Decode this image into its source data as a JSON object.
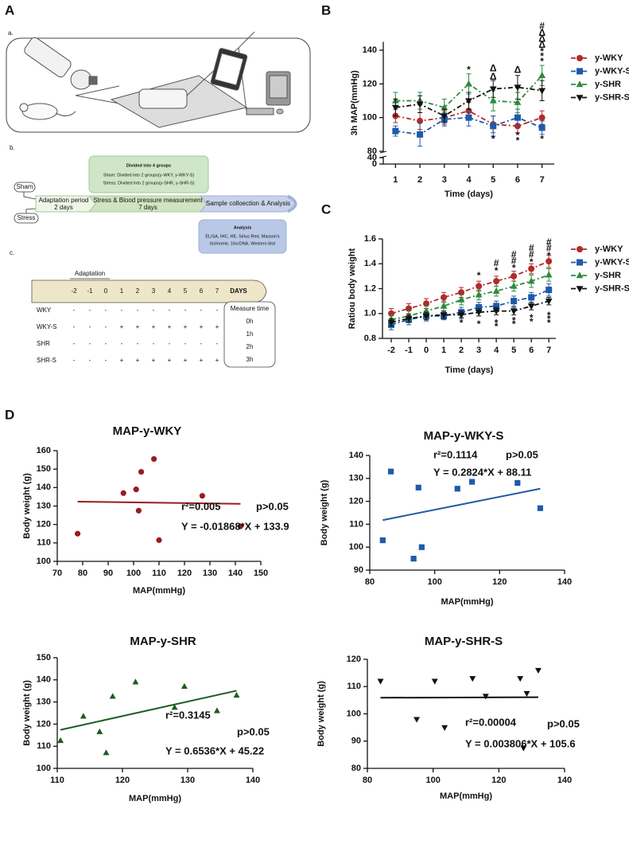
{
  "panel_labels": [
    "A",
    "B",
    "C",
    "D"
  ],
  "panel_a": {
    "sub_labels": [
      "a.",
      "b.",
      "c."
    ],
    "groups_box": {
      "title": "Divided into 4 groups",
      "lines": [
        "Sham: Divided into 2 groups(y-WKY, y-WKY-S)",
        "Stress: Divided into 2 groups(y-SHR, y-SHR-S)"
      ]
    },
    "conditions": [
      "Sham",
      "Stress"
    ],
    "phases": [
      {
        "name": "Adaptation period",
        "duration": "2 days"
      },
      {
        "name": "Stress & Blood pressure measurement",
        "duration": "7 days"
      },
      {
        "name": "Sample colloection & Analysis"
      }
    ],
    "analysis_box": {
      "title": "Analysis",
      "lines": [
        "ELISA, IHC, HE, Sirius Red, Masson's",
        "trichrome, 16srDNA, Western blot"
      ]
    },
    "timeline": {
      "label": "Adaptation",
      "days": [
        "-2",
        "-1",
        "0",
        "1",
        "2",
        "3",
        "4",
        "5",
        "6",
        "7"
      ],
      "unit": "DAYS"
    },
    "schedule": [
      {
        "group": "WKY",
        "marks": [
          "-",
          "-",
          "-",
          "-",
          "-",
          "-",
          "-",
          "-",
          "-",
          "-"
        ]
      },
      {
        "group": "WKY-S",
        "marks": [
          "-",
          "-",
          "-",
          "+",
          "+",
          "+",
          "+",
          "+",
          "+",
          "+"
        ]
      },
      {
        "group": "SHR",
        "marks": [
          "-",
          "-",
          "-",
          "-",
          "-",
          "-",
          "-",
          "-",
          "-",
          "-"
        ]
      },
      {
        "group": "SHR-S",
        "marks": [
          "-",
          "-",
          "-",
          "+",
          "+",
          "+",
          "+",
          "+",
          "+",
          "+"
        ]
      }
    ],
    "measure_time": {
      "title": "Measure time",
      "times": [
        "0h",
        "1h",
        "2h",
        "3h"
      ]
    }
  },
  "chart_data": [
    {
      "type": "line",
      "x_label": "Time (days)",
      "y_label": "3h MAP(mmHg)",
      "x": [
        1,
        2,
        3,
        4,
        5,
        6,
        7
      ],
      "xlim": [
        0.5,
        7.5
      ],
      "xticks": [
        1,
        2,
        3,
        4,
        5,
        6,
        7
      ],
      "ylim": [
        0,
        145
      ],
      "y_break": [
        40,
        80
      ],
      "yticks": [
        0,
        40,
        80,
        100,
        120,
        140
      ],
      "legend": "right",
      "series": [
        {
          "name": "y-WKY",
          "color": "#b22a2a",
          "marker": "circle",
          "values": [
            101,
            98,
            100,
            104,
            96,
            95,
            100
          ],
          "errors": [
            4,
            5,
            4,
            5,
            5,
            4,
            4
          ]
        },
        {
          "name": "y-WKY-S",
          "color": "#1f5aa8",
          "marker": "square",
          "values": [
            92,
            90,
            99,
            100,
            95,
            100,
            94
          ],
          "errors": [
            3,
            7,
            4,
            5,
            6,
            5,
            4
          ]
        },
        {
          "name": "y-SHR",
          "color": "#2e8b3c",
          "marker": "triangle",
          "values": [
            110,
            110,
            106,
            120,
            110,
            109,
            125
          ],
          "errors": [
            5,
            5,
            5,
            6,
            6,
            6,
            6
          ]
        },
        {
          "name": "y-SHR-S",
          "color": "#111111",
          "marker": "triangle-down",
          "values": [
            106,
            108,
            101,
            110,
            117,
            118,
            116
          ],
          "errors": [
            5,
            5,
            4,
            5,
            5,
            7,
            6
          ]
        }
      ],
      "annotations": [
        {
          "x": 4,
          "y": 128,
          "text": "*",
          "color": "#2e8b3c"
        },
        {
          "x": 5,
          "y": 129,
          "text": "Δ",
          "color": "#111111"
        },
        {
          "x": 5,
          "y": 124,
          "text": "Δ",
          "color": "#111111"
        },
        {
          "x": 6,
          "y": 128,
          "text": "Δ",
          "color": "#111111"
        },
        {
          "x": 7,
          "y": 154,
          "text": "#",
          "color": "#111111"
        },
        {
          "x": 7,
          "y": 150,
          "text": "Δ",
          "color": "#111111"
        },
        {
          "x": 7,
          "y": 146.5,
          "text": "Δ",
          "color": "#111111"
        },
        {
          "x": 7,
          "y": 143,
          "text": "Δ",
          "color": "#111111"
        },
        {
          "x": 7,
          "y": 139,
          "text": "*",
          "color": "#2e8b3c"
        },
        {
          "x": 7,
          "y": 136,
          "text": "*",
          "color": "#2e8b3c"
        },
        {
          "x": 7,
          "y": 133,
          "text": "*",
          "color": "#2e8b3c"
        },
        {
          "x": 5,
          "y": 87,
          "text": "*",
          "color": "#111111"
        },
        {
          "x": 6,
          "y": 89,
          "text": "*",
          "color": "#111111"
        },
        {
          "x": 6,
          "y": 86,
          "text": "*",
          "color": "#111111"
        },
        {
          "x": 7,
          "y": 87,
          "text": "*",
          "color": "#111111"
        }
      ]
    },
    {
      "type": "line",
      "x_label": "Time (days)",
      "y_label": "Ratiou body weight",
      "x": [
        -2,
        -1,
        0,
        1,
        2,
        3,
        4,
        5,
        6,
        7
      ],
      "xlim": [
        -2.5,
        7.4
      ],
      "xticks": [
        -2,
        -1,
        0,
        1,
        2,
        3,
        4,
        5,
        6,
        7
      ],
      "ylim": [
        0.8,
        1.6
      ],
      "yticks": [
        0.8,
        {
          "value": 1,
          "label": "1.0"
        },
        1.2,
        1.4,
        1.6
      ],
      "legend": "right",
      "series": [
        {
          "name": "y-WKY",
          "color": "#b22a2a",
          "marker": "circle",
          "values": [
            1.0,
            1.04,
            1.08,
            1.13,
            1.17,
            1.22,
            1.26,
            1.3,
            1.36,
            1.42
          ],
          "errors": [
            0.04,
            0.04,
            0.04,
            0.04,
            0.04,
            0.04,
            0.04,
            0.04,
            0.04,
            0.05
          ]
        },
        {
          "name": "y-WKY-S",
          "color": "#1f5aa8",
          "marker": "square",
          "values": [
            0.91,
            0.95,
            0.98,
            0.98,
            1.01,
            1.05,
            1.06,
            1.1,
            1.13,
            1.19
          ],
          "errors": [
            0.04,
            0.04,
            0.04,
            0.03,
            0.04,
            0.04,
            0.04,
            0.04,
            0.04,
            0.05
          ]
        },
        {
          "name": "y-SHR",
          "color": "#2e8b3c",
          "marker": "triangle",
          "values": [
            0.95,
            0.98,
            1.02,
            1.06,
            1.11,
            1.15,
            1.18,
            1.22,
            1.26,
            1.31
          ],
          "errors": [
            0.04,
            0.04,
            0.04,
            0.04,
            0.04,
            0.04,
            0.04,
            0.04,
            0.05,
            0.05
          ]
        },
        {
          "name": "y-SHR-S",
          "color": "#111111",
          "marker": "triangle-down",
          "values": [
            0.93,
            0.96,
            0.98,
            0.99,
            0.99,
            1.01,
            1.02,
            1.02,
            1.06,
            1.1
          ],
          "errors": [
            0.03,
            0.03,
            0.03,
            0.03,
            0.03,
            0.03,
            0.03,
            0.03,
            0.03,
            0.03
          ]
        }
      ],
      "annotations": [
        {
          "x": 3,
          "y": 1.3,
          "text": "*",
          "color": "#1f5aa8"
        },
        {
          "x": 4,
          "y": 1.4,
          "text": "#",
          "color": "#111111"
        },
        {
          "x": 4,
          "y": 1.34,
          "text": "*",
          "color": "#1f5aa8"
        },
        {
          "x": 5,
          "y": 1.47,
          "text": "#",
          "color": "#111111"
        },
        {
          "x": 5,
          "y": 1.42,
          "text": "#",
          "color": "#111111"
        },
        {
          "x": 5,
          "y": 1.36,
          "text": "*",
          "color": "#1f5aa8"
        },
        {
          "x": 6,
          "y": 1.52,
          "text": "#",
          "color": "#111111"
        },
        {
          "x": 6,
          "y": 1.47,
          "text": "#",
          "color": "#111111"
        },
        {
          "x": 6,
          "y": 1.41,
          "text": "*",
          "color": "#1f5aa8"
        },
        {
          "x": 7,
          "y": 1.57,
          "text": "#",
          "color": "#111111"
        },
        {
          "x": 7,
          "y": 1.52,
          "text": "#",
          "color": "#111111"
        },
        {
          "x": 7,
          "y": 1.46,
          "text": "*",
          "color": "#1f5aa8"
        },
        {
          "x": 2,
          "y": 0.92,
          "text": "*",
          "color": "#111111"
        },
        {
          "x": 3,
          "y": 0.91,
          "text": "*",
          "color": "#111111"
        },
        {
          "x": 4,
          "y": 0.92,
          "text": "*",
          "color": "#111111"
        },
        {
          "x": 4,
          "y": 0.89,
          "text": "*",
          "color": "#111111"
        },
        {
          "x": 5,
          "y": 0.94,
          "text": "*",
          "color": "#111111"
        },
        {
          "x": 5,
          "y": 0.91,
          "text": "*",
          "color": "#111111"
        },
        {
          "x": 6,
          "y": 0.96,
          "text": "*",
          "color": "#111111"
        },
        {
          "x": 6,
          "y": 0.93,
          "text": "*",
          "color": "#111111"
        },
        {
          "x": 7,
          "y": 0.98,
          "text": "*",
          "color": "#111111"
        },
        {
          "x": 7,
          "y": 0.95,
          "text": "*",
          "color": "#111111"
        },
        {
          "x": 7,
          "y": 0.92,
          "text": "*",
          "color": "#111111"
        }
      ]
    },
    {
      "type": "scatter",
      "title": "MAP-y-WKY",
      "x_label": "MAP(mmHg)",
      "y_label": "Body weight (g)",
      "xlim": [
        70,
        150
      ],
      "xticks": [
        70,
        80,
        90,
        100,
        110,
        120,
        130,
        140,
        150
      ],
      "ylim": [
        100,
        160
      ],
      "yticks": [
        100,
        110,
        120,
        130,
        140,
        150,
        160
      ],
      "color": "#9b1c1c",
      "marker": "circle",
      "x": [
        78,
        96,
        101,
        102,
        103,
        108,
        110,
        127,
        142
      ],
      "y": [
        115,
        137,
        139,
        127.5,
        148.5,
        155.5,
        111.5,
        135.5,
        119
      ],
      "fit": {
        "x": [
          78,
          142
        ],
        "y": [
          132.4,
          131.2
        ]
      },
      "stats": [
        "r²=0.005",
        "p>0.05",
        "Y = -0.01868*X + 133.9"
      ]
    },
    {
      "type": "scatter",
      "title": "MAP-y-WKY-S",
      "x_label": "MAP(mmHg)",
      "y_label": "Body weight (g)",
      "xlim": [
        80,
        140
      ],
      "xticks": [
        80,
        100,
        120,
        140
      ],
      "ylim": [
        90,
        140
      ],
      "yticks": [
        90,
        100,
        110,
        120,
        130,
        140
      ],
      "color": "#1f5aa8",
      "marker": "square",
      "x": [
        84,
        86.5,
        93.5,
        95,
        96,
        107,
        111.5,
        125.5,
        132.5
      ],
      "y": [
        103,
        133,
        95,
        126,
        100,
        125.5,
        128.5,
        128,
        117
      ],
      "fit": {
        "x": [
          84,
          132.5
        ],
        "y": [
          111.8,
          125.5
        ]
      },
      "stats": [
        "r²=0.1114",
        "p>0.05",
        "Y = 0.2824*X + 88.11"
      ]
    },
    {
      "type": "scatter",
      "title": "MAP-y-SHR",
      "x_label": "MAP(mmHg)",
      "y_label": "Body weight (g)",
      "xlim": [
        110,
        140
      ],
      "xticks": [
        110,
        120,
        130,
        140
      ],
      "ylim": [
        100,
        150
      ],
      "yticks": [
        100,
        110,
        120,
        130,
        140,
        150
      ],
      "color": "#1b5e20",
      "marker": "triangle",
      "x": [
        110.5,
        114,
        116.5,
        117.5,
        118.5,
        122,
        128,
        129.5,
        134.5,
        137.5
      ],
      "y": [
        112.5,
        123.5,
        116.5,
        107,
        132.5,
        139,
        127.5,
        137,
        126,
        133
      ],
      "fit": {
        "x": [
          110.5,
          137.5
        ],
        "y": [
          117.4,
          135.1
        ]
      },
      "stats": [
        "r²=0.3145",
        "p>0.05",
        "Y = 0.6536*X + 45.22"
      ]
    },
    {
      "type": "scatter",
      "title": "MAP-y-SHR-S",
      "x_label": "MAP(mmHg)",
      "y_label": "Body weight (g)",
      "xlim": [
        80,
        140
      ],
      "xticks": [
        80,
        100,
        120,
        140
      ],
      "ylim": [
        80,
        120
      ],
      "yticks": [
        80,
        90,
        100,
        110,
        120
      ],
      "color": "#111111",
      "marker": "triangle-down",
      "x": [
        84,
        95,
        100.5,
        103.5,
        112,
        116,
        126.5,
        127.5,
        128.5,
        132
      ],
      "y": [
        112,
        98,
        112,
        95,
        113,
        106.5,
        113,
        87.5,
        107.5,
        116
      ],
      "fit": {
        "x": [
          84,
          132
        ],
        "y": [
          105.9,
          106.1
        ]
      },
      "stats": [
        "r²=0.00004",
        "p>0.05",
        "Y = 0.003806*X + 105.6"
      ]
    }
  ]
}
